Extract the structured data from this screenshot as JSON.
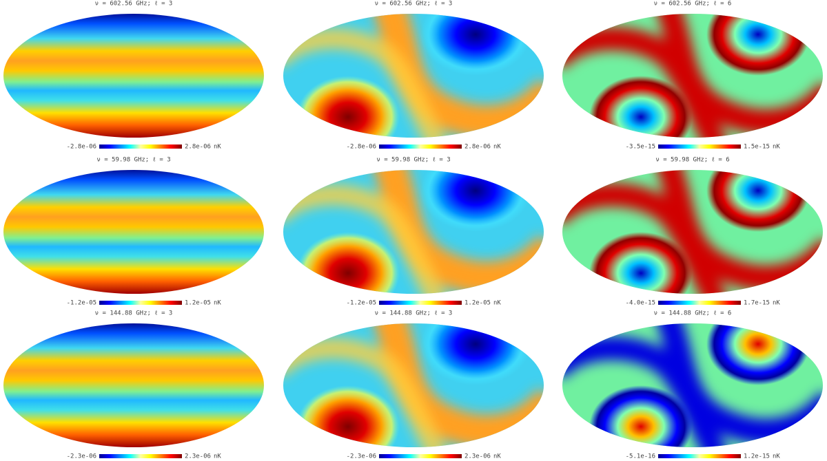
{
  "panels": [
    {
      "title": "ν = 602.56 GHz; ℓ = 3",
      "colorbar": {
        "min": "-2.8e-06",
        "max": "2.8e-06",
        "unit": "nK"
      }
    },
    {
      "title": "ν = 602.56 GHz; ℓ = 3",
      "colorbar": {
        "min": "-2.8e-06",
        "max": "2.8e-06",
        "unit": "nK"
      }
    },
    {
      "title": "ν = 602.56 GHz; ℓ = 6",
      "colorbar": {
        "min": "-3.5e-15",
        "max": "1.5e-15",
        "unit": "nK"
      }
    },
    {
      "title": "ν = 59.98 GHz; ℓ = 3",
      "colorbar": {
        "min": "-1.2e-05",
        "max": "1.2e-05",
        "unit": "nK"
      }
    },
    {
      "title": "ν = 59.98 GHz; ℓ = 3",
      "colorbar": {
        "min": "-1.2e-05",
        "max": "1.2e-05",
        "unit": "nK"
      }
    },
    {
      "title": "ν = 59.98 GHz; ℓ = 6",
      "colorbar": {
        "min": "-4.0e-15",
        "max": "1.7e-15",
        "unit": "nK"
      }
    },
    {
      "title": "ν = 144.88 GHz; ℓ = 3",
      "colorbar": {
        "min": "-2.3e-06",
        "max": "2.3e-06",
        "unit": "nK"
      }
    },
    {
      "title": "ν = 144.88 GHz; ℓ = 3",
      "colorbar": {
        "min": "-2.3e-06",
        "max": "2.3e-06",
        "unit": "nK"
      }
    },
    {
      "title": "ν = 144.88 GHz; ℓ = 6",
      "colorbar": {
        "min": "-5.1e-16",
        "max": "1.2e-15",
        "unit": "nK"
      }
    }
  ]
}
